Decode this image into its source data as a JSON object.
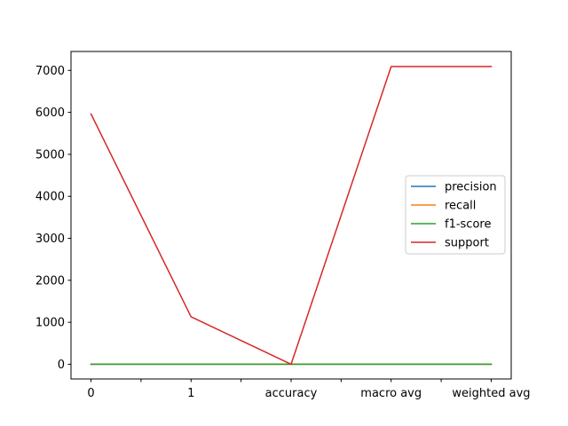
{
  "chart_data": {
    "type": "line",
    "title": "",
    "xlabel": "",
    "ylabel": "",
    "categories": [
      "0",
      "1",
      "accuracy",
      "macro avg",
      "weighted avg"
    ],
    "x_ticks": [
      "0",
      "",
      "1",
      "",
      "accuracy",
      "",
      "macro avg",
      "",
      "weighted avg"
    ],
    "y_ticks": [
      0,
      1000,
      2000,
      3000,
      4000,
      5000,
      6000,
      7000
    ],
    "ylim": [
      -350,
      7450
    ],
    "grid": false,
    "legend_position": "center-right",
    "series": [
      {
        "name": "precision",
        "color": "#1f77b4",
        "values": [
          0.85,
          0.2,
          0.75,
          0.52,
          0.76
        ]
      },
      {
        "name": "recall",
        "color": "#ff7f0e",
        "values": [
          0.88,
          0.16,
          0.75,
          0.52,
          0.75
        ]
      },
      {
        "name": "f1-score",
        "color": "#2ca02c",
        "values": [
          0.86,
          0.18,
          0.75,
          0.52,
          0.75
        ]
      },
      {
        "name": "support",
        "color": "#d62728",
        "values": [
          5960,
          1130,
          0.75,
          7090,
          7090
        ]
      }
    ]
  }
}
